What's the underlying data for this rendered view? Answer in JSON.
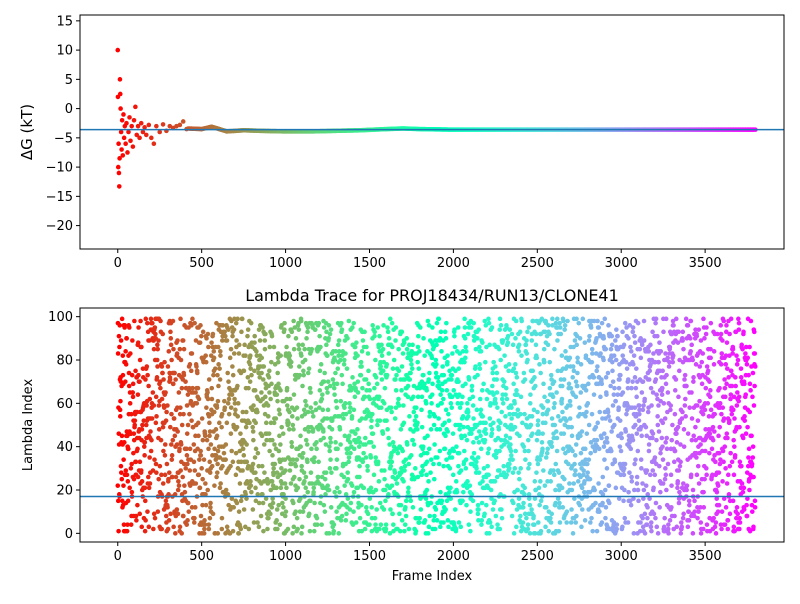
{
  "chart_data": [
    {
      "type": "scatter",
      "title": "",
      "xlabel": "",
      "ylabel": "ΔG (kT)",
      "xlim": [
        -225,
        3970
      ],
      "ylim": [
        -24,
        16
      ],
      "x_ticks": [
        0,
        500,
        1000,
        1500,
        2000,
        2500,
        3000,
        3500
      ],
      "y_ticks": [
        -20,
        -15,
        -10,
        -5,
        0,
        5,
        10,
        15
      ],
      "x_tick_labels": [
        "0",
        "500",
        "1000",
        "1500",
        "2000",
        "2500",
        "3000",
        "3500"
      ],
      "y_tick_labels": [
        "−20",
        "−15",
        "−10",
        "−5",
        "0",
        "5",
        "10",
        "15"
      ],
      "hline": -3.6,
      "hline_color": "#1f77b4",
      "colormap": "rainbow",
      "x_max_frame": 3800,
      "grid": false,
      "early_points": [
        {
          "x": 0,
          "y": 10
        },
        {
          "x": 1,
          "y": 2
        },
        {
          "x": 3,
          "y": -10
        },
        {
          "x": 5,
          "y": -6
        },
        {
          "x": 7,
          "y": -11
        },
        {
          "x": 9,
          "y": -13.3
        },
        {
          "x": 11,
          "y": -8.5
        },
        {
          "x": 13,
          "y": 5
        },
        {
          "x": 15,
          "y": 2.5
        },
        {
          "x": 17,
          "y": 0
        },
        {
          "x": 20,
          "y": -4
        },
        {
          "x": 23,
          "y": -7
        },
        {
          "x": 26,
          "y": -2
        },
        {
          "x": 30,
          "y": -8
        },
        {
          "x": 34,
          "y": -1
        },
        {
          "x": 38,
          "y": -5
        },
        {
          "x": 42,
          "y": -3
        },
        {
          "x": 47,
          "y": -6
        },
        {
          "x": 52,
          "y": -2.5
        },
        {
          "x": 58,
          "y": -7.5
        },
        {
          "x": 64,
          "y": -4
        },
        {
          "x": 70,
          "y": -1.5
        },
        {
          "x": 76,
          "y": -5.5
        },
        {
          "x": 83,
          "y": -3
        },
        {
          "x": 90,
          "y": -6.5
        },
        {
          "x": 97,
          "y": -2
        },
        {
          "x": 105,
          "y": 0.3
        },
        {
          "x": 113,
          "y": -4.5
        },
        {
          "x": 121,
          "y": -3
        },
        {
          "x": 130,
          "y": -5
        },
        {
          "x": 140,
          "y": -2.5
        },
        {
          "x": 150,
          "y": -4
        },
        {
          "x": 160,
          "y": -3.2
        },
        {
          "x": 170,
          "y": -4.5
        },
        {
          "x": 185,
          "y": -2.8
        },
        {
          "x": 200,
          "y": -5
        },
        {
          "x": 215,
          "y": -6
        },
        {
          "x": 230,
          "y": -3
        },
        {
          "x": 250,
          "y": -4
        },
        {
          "x": 270,
          "y": -2.7
        },
        {
          "x": 290,
          "y": -3.8
        },
        {
          "x": 310,
          "y": -3
        },
        {
          "x": 330,
          "y": -3.3
        },
        {
          "x": 350,
          "y": -3
        },
        {
          "x": 370,
          "y": -2.8
        },
        {
          "x": 390,
          "y": -2.2
        },
        {
          "x": 410,
          "y": -3.5
        }
      ],
      "trace_points": [
        {
          "x": 420,
          "y": -3.4
        },
        {
          "x": 500,
          "y": -3.5
        },
        {
          "x": 560,
          "y": -3.1
        },
        {
          "x": 650,
          "y": -3.9
        },
        {
          "x": 750,
          "y": -3.7
        },
        {
          "x": 850,
          "y": -3.8
        },
        {
          "x": 1000,
          "y": -3.9
        },
        {
          "x": 1150,
          "y": -3.9
        },
        {
          "x": 1300,
          "y": -3.8
        },
        {
          "x": 1450,
          "y": -3.7
        },
        {
          "x": 1600,
          "y": -3.5
        },
        {
          "x": 1700,
          "y": -3.4
        },
        {
          "x": 1800,
          "y": -3.5
        },
        {
          "x": 2000,
          "y": -3.6
        },
        {
          "x": 2300,
          "y": -3.6
        },
        {
          "x": 2600,
          "y": -3.6
        },
        {
          "x": 3000,
          "y": -3.6
        },
        {
          "x": 3400,
          "y": -3.6
        },
        {
          "x": 3800,
          "y": -3.6
        }
      ]
    },
    {
      "type": "scatter",
      "title": "Lambda Trace for PROJ18434/RUN13/CLONE41",
      "xlabel": "Frame Index",
      "ylabel": "Lambda Index",
      "xlim": [
        -225,
        3970
      ],
      "ylim": [
        -4,
        104
      ],
      "x_ticks": [
        0,
        500,
        1000,
        1500,
        2000,
        2500,
        3000,
        3500
      ],
      "y_ticks": [
        0,
        20,
        40,
        60,
        80,
        100
      ],
      "x_tick_labels": [
        "0",
        "500",
        "1000",
        "1500",
        "2000",
        "2500",
        "3000",
        "3500"
      ],
      "y_tick_labels": [
        "0",
        "20",
        "40",
        "60",
        "80",
        "100"
      ],
      "hline": 17,
      "hline_color": "#1f77b4",
      "colormap": "rainbow",
      "frames": 3800,
      "lambda_range": [
        0,
        99
      ],
      "grid": false
    }
  ]
}
